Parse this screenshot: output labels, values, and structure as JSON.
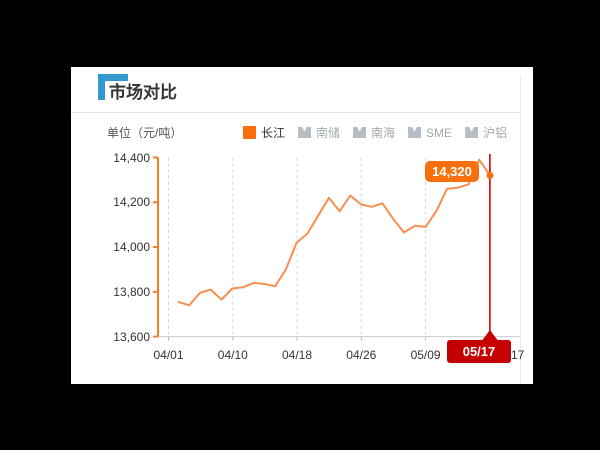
{
  "panel": {
    "title": "市场对比",
    "unit_label": "单位（元/吨）",
    "accent_blue": "#3398cc"
  },
  "legend": {
    "active_item": {
      "label": "长江",
      "color": "#fb6d0d"
    },
    "inactive_items": [
      {
        "label": "南储"
      },
      {
        "label": "南海"
      },
      {
        "label": "SME"
      },
      {
        "label": "沪铝"
      }
    ],
    "inactive_icon": "m-series-icon",
    "inactive_color": "#b7bec3"
  },
  "chart_data": {
    "type": "line",
    "title": "市场对比",
    "ylabel": "元/吨",
    "ylim": [
      13600,
      14400
    ],
    "y_tick_labels": [
      "14,400",
      "14,200",
      "14,000",
      "13,800",
      "13,600"
    ],
    "x_tick_labels": [
      "04/01",
      "04/10",
      "04/18",
      "04/26",
      "05/09",
      "05/17"
    ],
    "partial_last_axis_label": "17",
    "grid": "vertical-dashed",
    "legend_position": "top",
    "series": [
      {
        "name": "长江",
        "color": "#f98f4e",
        "values": [
          13755,
          13740,
          13795,
          13810,
          13765,
          13815,
          13820,
          13840,
          13835,
          13825,
          13900,
          14020,
          14060,
          14140,
          14220,
          14160,
          14230,
          14190,
          14180,
          14195,
          14125,
          14065,
          14095,
          14090,
          14160,
          14260,
          14265,
          14280,
          14390,
          14320
        ]
      }
    ],
    "last_point": {
      "value_label": "14,320",
      "date_label": "05/17",
      "marker_line_color": "#d60000",
      "badge_color": "#c40000",
      "bubble_color": "#f8700e"
    },
    "axis_colors": {
      "y_axis": "#f87e25",
      "x_axis": "#cccccc"
    }
  }
}
